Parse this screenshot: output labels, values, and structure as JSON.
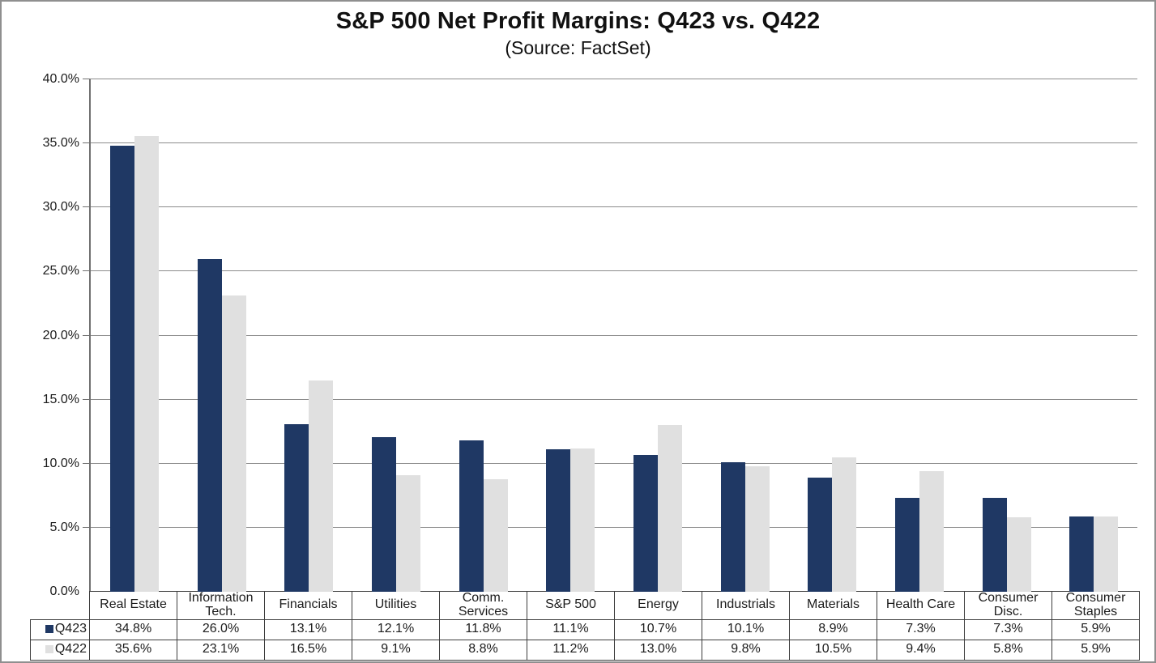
{
  "title": "S&P 500 Net Profit Margins: Q423 vs. Q422",
  "subtitle": "(Source: FactSet)",
  "colors": {
    "q423_bar": "#1F3864",
    "q422_bar": "#E0E0E0",
    "gridline": "#8C8C8C",
    "table_border": "#3D3D3D",
    "background": "#FFFFFF"
  },
  "chart_data": {
    "type": "bar",
    "title": "S&P 500 Net Profit Margins: Q423 vs. Q422",
    "subtitle": "(Source: FactSet)",
    "categories": [
      "Real Estate",
      "Information Tech.",
      "Financials",
      "Utilities",
      "Comm. Services",
      "S&P 500",
      "Energy",
      "Industrials",
      "Materials",
      "Health Care",
      "Consumer Disc.",
      "Consumer Staples"
    ],
    "series": [
      {
        "name": "Q423",
        "color": "#1F3864",
        "values": [
          34.8,
          26.0,
          13.1,
          12.1,
          11.8,
          11.1,
          10.7,
          10.1,
          8.9,
          7.3,
          7.3,
          5.9
        ]
      },
      {
        "name": "Q422",
        "color": "#E0E0E0",
        "values": [
          35.6,
          23.1,
          16.5,
          9.1,
          8.8,
          11.2,
          13.0,
          9.8,
          10.5,
          9.4,
          5.8,
          5.9
        ]
      }
    ],
    "ylim": [
      0,
      40
    ],
    "ytick_step": 5,
    "ytick_labels": [
      "0.0%",
      "5.0%",
      "10.0%",
      "15.0%",
      "20.0%",
      "25.0%",
      "30.0%",
      "35.0%",
      "40.0%"
    ],
    "grid": true,
    "legend_position": "left column of data table below chart"
  },
  "table": {
    "rows": [
      {
        "label": "Q423",
        "cells": [
          "34.8%",
          "26.0%",
          "13.1%",
          "12.1%",
          "11.8%",
          "11.1%",
          "10.7%",
          "10.1%",
          "8.9%",
          "7.3%",
          "7.3%",
          "5.9%"
        ]
      },
      {
        "label": "Q422",
        "cells": [
          "35.6%",
          "23.1%",
          "16.5%",
          "9.1%",
          "8.8%",
          "11.2%",
          "13.0%",
          "9.8%",
          "10.5%",
          "9.4%",
          "5.8%",
          "5.9%"
        ]
      }
    ]
  }
}
